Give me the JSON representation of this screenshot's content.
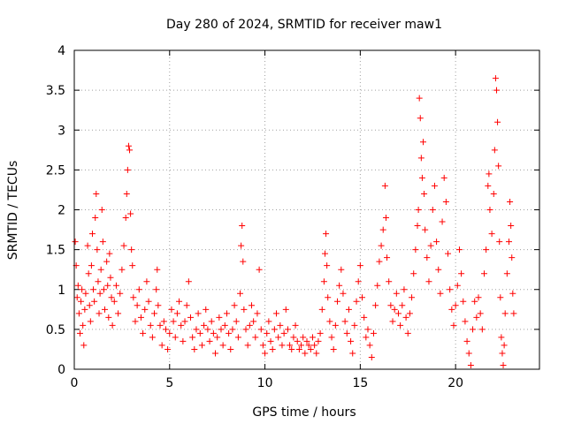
{
  "chart_data": {
    "type": "scatter",
    "title": "Day 280 of 2024, SRMTID for receiver maw1",
    "xlabel": "GPS time / hours",
    "ylabel": "SRMTID / TECUs",
    "xlim": [
      0,
      24.4
    ],
    "ylim": [
      0,
      4
    ],
    "x_ticks": [
      0,
      5,
      10,
      15,
      20
    ],
    "x_tick_labels": [
      "0",
      "5",
      "10",
      "15",
      "20"
    ],
    "y_ticks": [
      0,
      0.5,
      1,
      1.5,
      2,
      2.5,
      3,
      3.5,
      4
    ],
    "y_tick_labels": [
      "0",
      "0.5",
      "1",
      "1.5",
      "2",
      "2.5",
      "3",
      "3.5",
      "4"
    ],
    "grid": true,
    "marker": "+",
    "series": [
      {
        "name": "maw1",
        "color": "#ff0000",
        "points": [
          [
            0.05,
            1.6
          ],
          [
            0.1,
            1.3
          ],
          [
            0.15,
            0.9
          ],
          [
            0.2,
            1.05
          ],
          [
            0.25,
            0.7
          ],
          [
            0.3,
            0.45
          ],
          [
            0.35,
            0.85
          ],
          [
            0.4,
            1.0
          ],
          [
            0.45,
            0.55
          ],
          [
            0.5,
            0.3
          ],
          [
            0.55,
            0.75
          ],
          [
            0.6,
            0.95
          ],
          [
            0.7,
            1.55
          ],
          [
            0.75,
            1.2
          ],
          [
            0.8,
            0.8
          ],
          [
            0.85,
            0.6
          ],
          [
            0.9,
            1.3
          ],
          [
            0.95,
            1.7
          ],
          [
            1.0,
            1.0
          ],
          [
            1.05,
            0.85
          ],
          [
            1.1,
            1.9
          ],
          [
            1.15,
            2.2
          ],
          [
            1.2,
            1.5
          ],
          [
            1.25,
            1.1
          ],
          [
            1.3,
            0.7
          ],
          [
            1.35,
            0.95
          ],
          [
            1.4,
            1.25
          ],
          [
            1.45,
            2.0
          ],
          [
            1.5,
            1.6
          ],
          [
            1.55,
            1.0
          ],
          [
            1.6,
            0.75
          ],
          [
            1.7,
            1.35
          ],
          [
            1.75,
            1.05
          ],
          [
            1.8,
            0.65
          ],
          [
            1.85,
            1.45
          ],
          [
            1.9,
            1.15
          ],
          [
            1.95,
            0.9
          ],
          [
            2.0,
            0.55
          ],
          [
            2.1,
            0.85
          ],
          [
            2.2,
            1.05
          ],
          [
            2.3,
            0.7
          ],
          [
            2.4,
            0.95
          ],
          [
            2.5,
            1.25
          ],
          [
            2.6,
            1.55
          ],
          [
            2.7,
            1.9
          ],
          [
            2.75,
            2.2
          ],
          [
            2.8,
            2.5
          ],
          [
            2.85,
            2.8
          ],
          [
            2.9,
            2.75
          ],
          [
            2.95,
            1.95
          ],
          [
            3.0,
            1.5
          ],
          [
            3.05,
            1.3
          ],
          [
            3.1,
            0.9
          ],
          [
            3.2,
            0.6
          ],
          [
            3.3,
            0.8
          ],
          [
            3.4,
            1.0
          ],
          [
            3.5,
            0.65
          ],
          [
            3.6,
            0.45
          ],
          [
            3.7,
            0.75
          ],
          [
            3.8,
            1.1
          ],
          [
            3.9,
            0.85
          ],
          [
            4.0,
            0.55
          ],
          [
            4.1,
            0.4
          ],
          [
            4.2,
            0.7
          ],
          [
            4.3,
            1.0
          ],
          [
            4.35,
            1.25
          ],
          [
            4.4,
            0.8
          ],
          [
            4.5,
            0.55
          ],
          [
            4.6,
            0.3
          ],
          [
            4.7,
            0.6
          ],
          [
            4.8,
            0.5
          ],
          [
            4.9,
            0.25
          ],
          [
            5.0,
            0.45
          ],
          [
            5.1,
            0.75
          ],
          [
            5.2,
            0.6
          ],
          [
            5.3,
            0.4
          ],
          [
            5.4,
            0.7
          ],
          [
            5.5,
            0.85
          ],
          [
            5.6,
            0.55
          ],
          [
            5.7,
            0.35
          ],
          [
            5.8,
            0.6
          ],
          [
            5.9,
            0.8
          ],
          [
            6.0,
            1.1
          ],
          [
            6.1,
            0.65
          ],
          [
            6.2,
            0.4
          ],
          [
            6.3,
            0.25
          ],
          [
            6.4,
            0.5
          ],
          [
            6.5,
            0.7
          ],
          [
            6.6,
            0.45
          ],
          [
            6.7,
            0.3
          ],
          [
            6.8,
            0.55
          ],
          [
            6.9,
            0.75
          ],
          [
            7.0,
            0.5
          ],
          [
            7.1,
            0.35
          ],
          [
            7.2,
            0.6
          ],
          [
            7.3,
            0.45
          ],
          [
            7.4,
            0.2
          ],
          [
            7.5,
            0.4
          ],
          [
            7.6,
            0.65
          ],
          [
            7.7,
            0.5
          ],
          [
            7.8,
            0.3
          ],
          [
            7.9,
            0.55
          ],
          [
            8.0,
            0.7
          ],
          [
            8.1,
            0.45
          ],
          [
            8.2,
            0.25
          ],
          [
            8.3,
            0.5
          ],
          [
            8.4,
            0.8
          ],
          [
            8.5,
            0.6
          ],
          [
            8.6,
            0.4
          ],
          [
            8.7,
            0.95
          ],
          [
            8.75,
            1.55
          ],
          [
            8.8,
            1.8
          ],
          [
            8.85,
            1.35
          ],
          [
            8.9,
            0.75
          ],
          [
            9.0,
            0.5
          ],
          [
            9.1,
            0.3
          ],
          [
            9.2,
            0.55
          ],
          [
            9.3,
            0.8
          ],
          [
            9.4,
            0.6
          ],
          [
            9.5,
            0.4
          ],
          [
            9.6,
            0.7
          ],
          [
            9.7,
            1.25
          ],
          [
            9.8,
            0.5
          ],
          [
            9.9,
            0.3
          ],
          [
            10.0,
            0.2
          ],
          [
            10.1,
            0.45
          ],
          [
            10.2,
            0.6
          ],
          [
            10.3,
            0.35
          ],
          [
            10.4,
            0.25
          ],
          [
            10.5,
            0.5
          ],
          [
            10.6,
            0.7
          ],
          [
            10.7,
            0.4
          ],
          [
            10.8,
            0.55
          ],
          [
            10.9,
            0.3
          ],
          [
            11.0,
            0.45
          ],
          [
            11.1,
            0.75
          ],
          [
            11.2,
            0.5
          ],
          [
            11.3,
            0.3
          ],
          [
            11.4,
            0.25
          ],
          [
            11.5,
            0.4
          ],
          [
            11.6,
            0.55
          ],
          [
            11.7,
            0.35
          ],
          [
            11.8,
            0.25
          ],
          [
            11.9,
            0.3
          ],
          [
            12.0,
            0.4
          ],
          [
            12.1,
            0.2
          ],
          [
            12.2,
            0.35
          ],
          [
            12.3,
            0.3
          ],
          [
            12.4,
            0.25
          ],
          [
            12.5,
            0.4
          ],
          [
            12.6,
            0.3
          ],
          [
            12.7,
            0.2
          ],
          [
            12.8,
            0.35
          ],
          [
            12.9,
            0.45
          ],
          [
            13.0,
            0.75
          ],
          [
            13.1,
            1.1
          ],
          [
            13.15,
            1.45
          ],
          [
            13.2,
            1.7
          ],
          [
            13.25,
            1.3
          ],
          [
            13.3,
            0.9
          ],
          [
            13.4,
            0.6
          ],
          [
            13.5,
            0.4
          ],
          [
            13.6,
            0.25
          ],
          [
            13.7,
            0.55
          ],
          [
            13.8,
            0.85
          ],
          [
            13.9,
            1.05
          ],
          [
            14.0,
            1.25
          ],
          [
            14.1,
            0.95
          ],
          [
            14.2,
            0.6
          ],
          [
            14.3,
            0.45
          ],
          [
            14.4,
            0.75
          ],
          [
            14.5,
            0.35
          ],
          [
            14.6,
            0.2
          ],
          [
            14.7,
            0.55
          ],
          [
            14.8,
            0.85
          ],
          [
            14.9,
            1.1
          ],
          [
            15.0,
            1.3
          ],
          [
            15.1,
            0.9
          ],
          [
            15.2,
            0.65
          ],
          [
            15.3,
            0.4
          ],
          [
            15.4,
            0.5
          ],
          [
            15.5,
            0.3
          ],
          [
            15.6,
            0.15
          ],
          [
            15.7,
            0.45
          ],
          [
            15.8,
            0.8
          ],
          [
            15.9,
            1.05
          ],
          [
            16.0,
            1.35
          ],
          [
            16.1,
            1.55
          ],
          [
            16.2,
            1.75
          ],
          [
            16.3,
            2.3
          ],
          [
            16.35,
            1.9
          ],
          [
            16.4,
            1.4
          ],
          [
            16.5,
            1.1
          ],
          [
            16.6,
            0.8
          ],
          [
            16.7,
            0.6
          ],
          [
            16.8,
            0.75
          ],
          [
            16.9,
            0.95
          ],
          [
            17.0,
            0.7
          ],
          [
            17.1,
            0.55
          ],
          [
            17.2,
            0.8
          ],
          [
            17.3,
            1.0
          ],
          [
            17.4,
            0.65
          ],
          [
            17.5,
            0.45
          ],
          [
            17.6,
            0.7
          ],
          [
            17.7,
            0.9
          ],
          [
            17.8,
            1.2
          ],
          [
            17.9,
            1.5
          ],
          [
            18.0,
            1.8
          ],
          [
            18.05,
            2.0
          ],
          [
            18.1,
            3.4
          ],
          [
            18.15,
            3.15
          ],
          [
            18.2,
            2.65
          ],
          [
            18.25,
            2.4
          ],
          [
            18.3,
            2.85
          ],
          [
            18.35,
            2.2
          ],
          [
            18.4,
            1.75
          ],
          [
            18.5,
            1.4
          ],
          [
            18.6,
            1.1
          ],
          [
            18.7,
            1.55
          ],
          [
            18.8,
            2.0
          ],
          [
            18.9,
            2.3
          ],
          [
            19.0,
            1.6
          ],
          [
            19.1,
            1.25
          ],
          [
            19.2,
            0.95
          ],
          [
            19.3,
            1.85
          ],
          [
            19.4,
            2.4
          ],
          [
            19.5,
            2.1
          ],
          [
            19.6,
            1.45
          ],
          [
            19.7,
            1.0
          ],
          [
            19.8,
            0.75
          ],
          [
            19.9,
            0.55
          ],
          [
            20.0,
            0.8
          ],
          [
            20.1,
            1.05
          ],
          [
            20.2,
            1.5
          ],
          [
            20.3,
            1.2
          ],
          [
            20.4,
            0.85
          ],
          [
            20.5,
            0.6
          ],
          [
            20.6,
            0.35
          ],
          [
            20.7,
            0.2
          ],
          [
            20.8,
            0.05
          ],
          [
            20.9,
            0.5
          ],
          [
            21.0,
            0.85
          ],
          [
            21.1,
            0.65
          ],
          [
            21.2,
            0.9
          ],
          [
            21.3,
            0.7
          ],
          [
            21.4,
            0.5
          ],
          [
            21.5,
            1.2
          ],
          [
            21.6,
            1.5
          ],
          [
            21.7,
            2.3
          ],
          [
            21.75,
            2.45
          ],
          [
            21.8,
            2.0
          ],
          [
            21.9,
            1.7
          ],
          [
            22.0,
            2.2
          ],
          [
            22.05,
            2.75
          ],
          [
            22.1,
            3.65
          ],
          [
            22.15,
            3.5
          ],
          [
            22.2,
            3.1
          ],
          [
            22.25,
            2.55
          ],
          [
            22.3,
            1.6
          ],
          [
            22.35,
            0.9
          ],
          [
            22.4,
            0.4
          ],
          [
            22.45,
            0.2
          ],
          [
            22.5,
            0.05
          ],
          [
            22.55,
            0.3
          ],
          [
            22.6,
            0.7
          ],
          [
            22.7,
            1.2
          ],
          [
            22.8,
            1.6
          ],
          [
            22.85,
            2.1
          ],
          [
            22.9,
            1.8
          ],
          [
            22.95,
            1.4
          ],
          [
            23.0,
            0.95
          ],
          [
            23.05,
            0.7
          ]
        ]
      }
    ]
  }
}
